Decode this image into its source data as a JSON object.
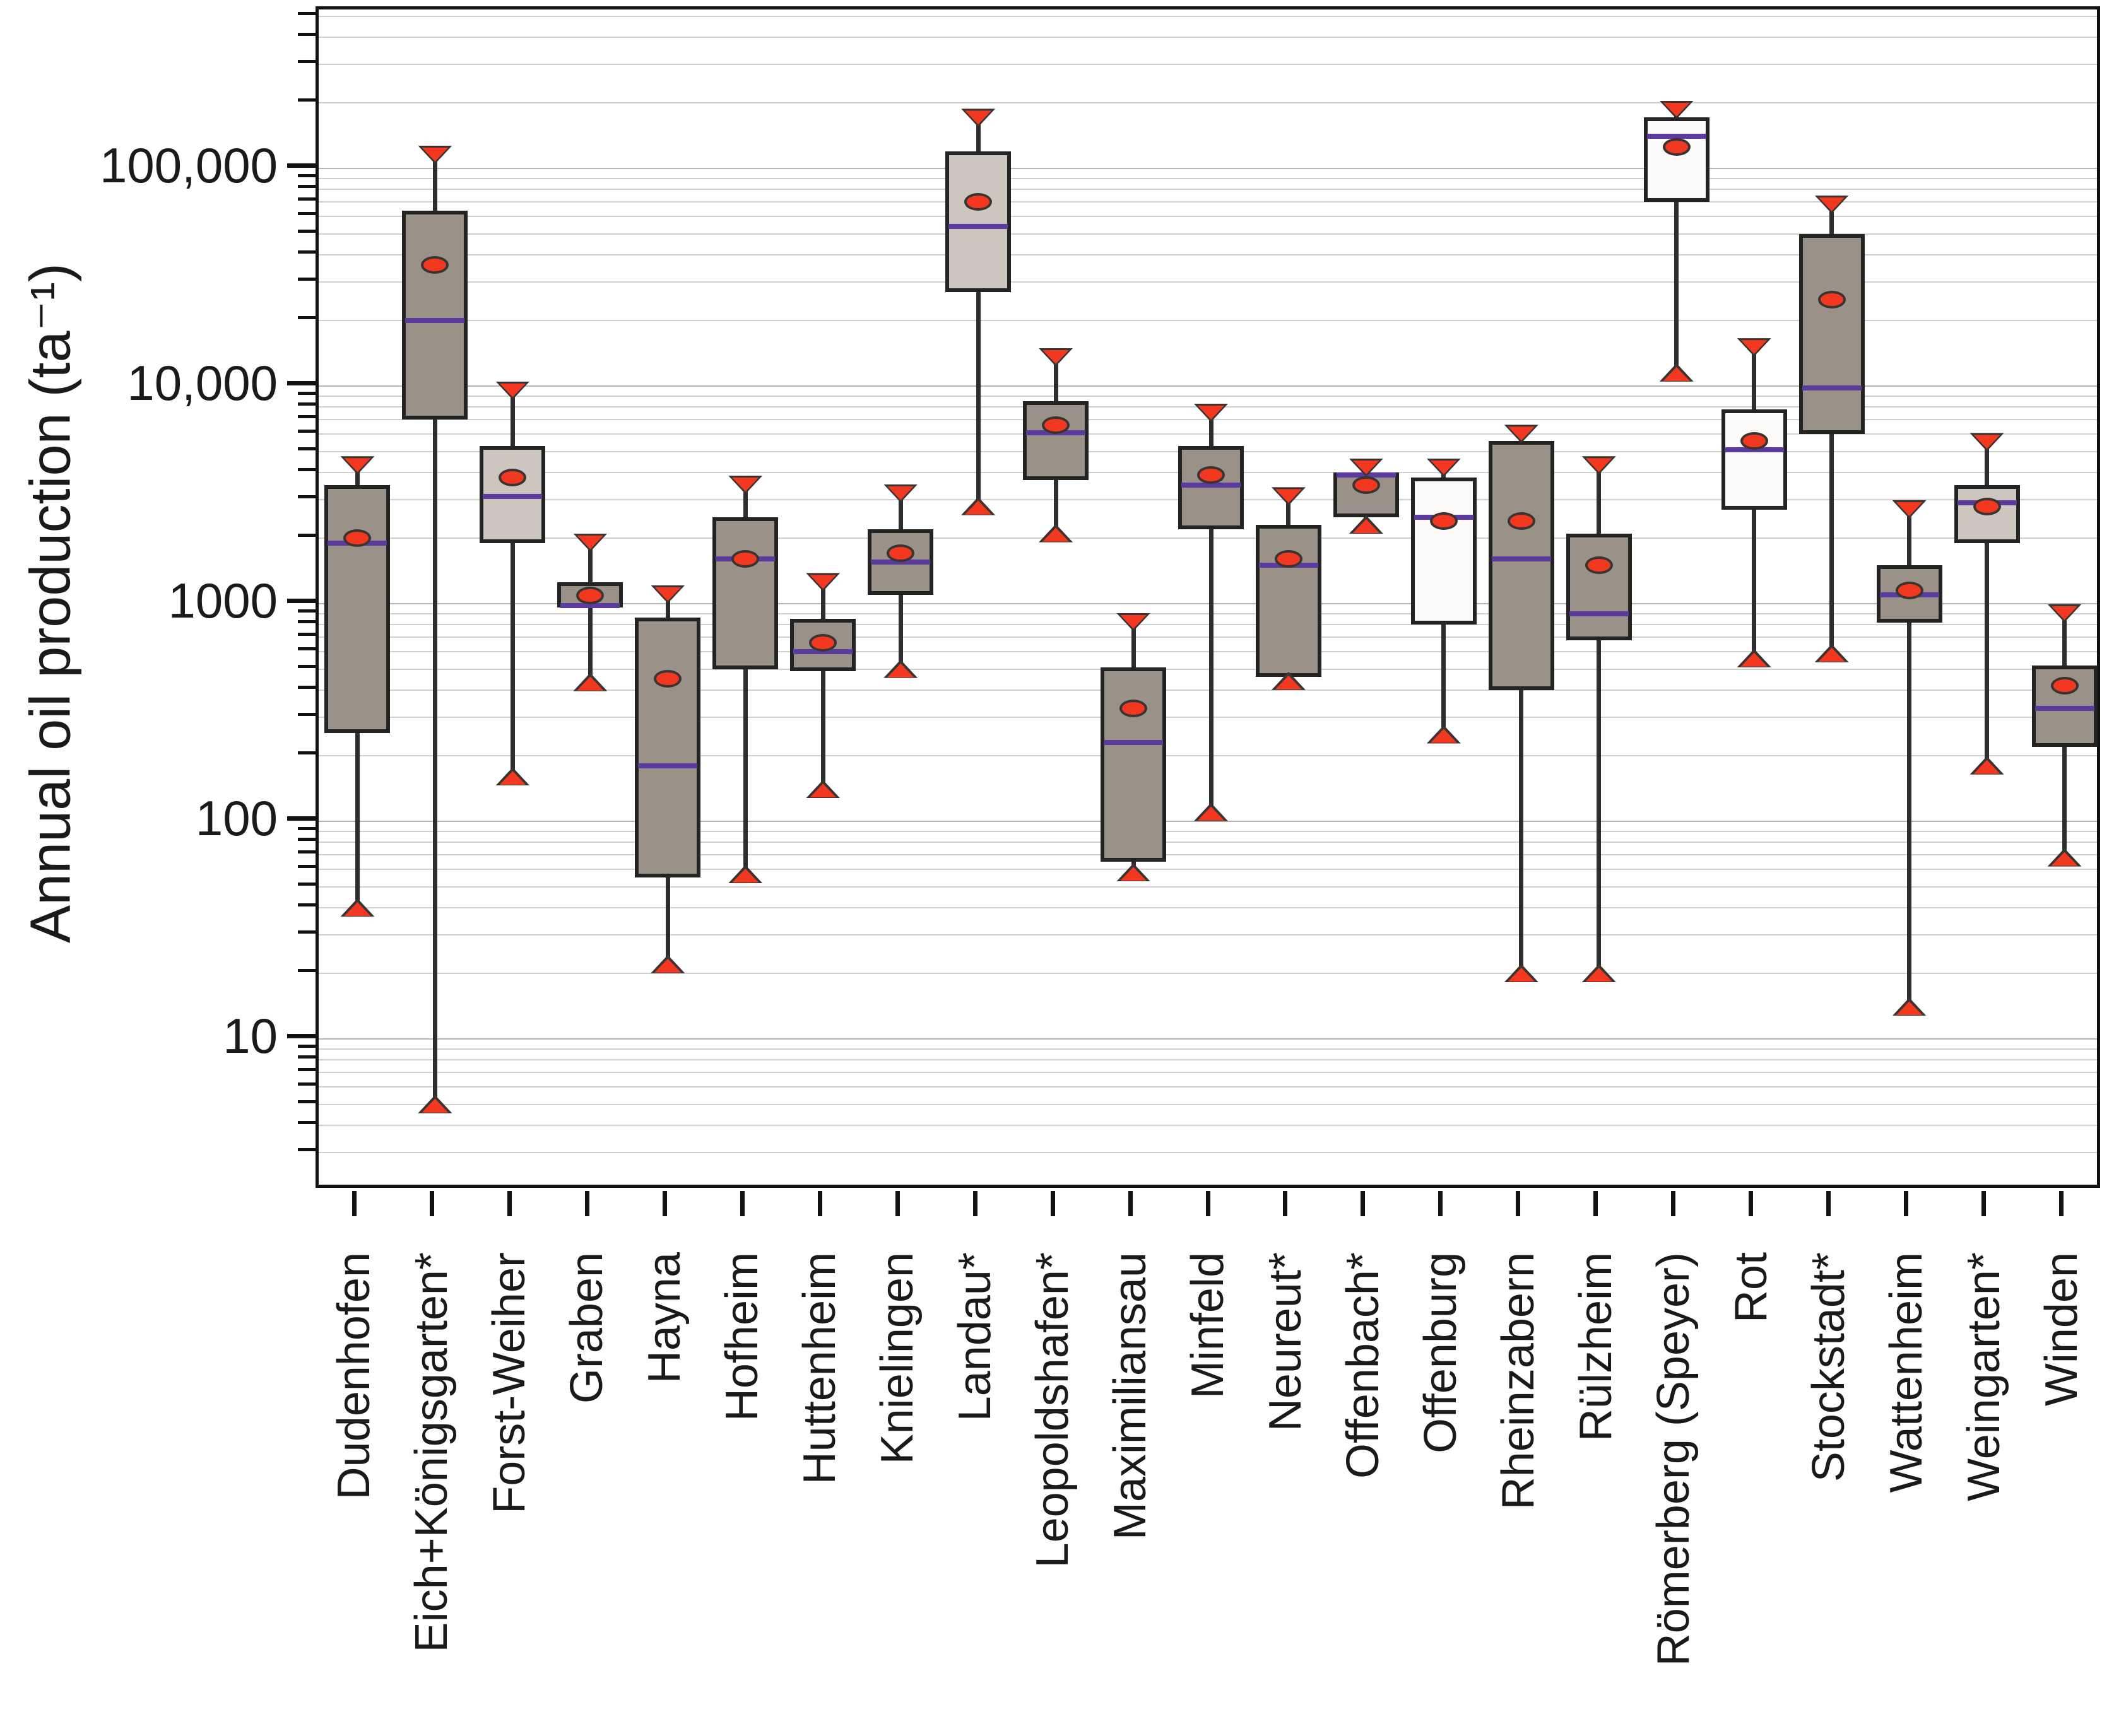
{
  "chart_data": {
    "type": "box",
    "title": "",
    "ylabel": "Annual oil production (ta⁻¹)",
    "xlabel": "",
    "yscale": "log",
    "ylim": [
      2,
      537000
    ],
    "grid": "horizontal, log minor lines (mantissa 2-9), major decade lines darker",
    "legend_position": "none",
    "ytick_values": [
      10,
      100,
      1000,
      10000,
      100000
    ],
    "ytick_labels": [
      "10",
      "100",
      "1000",
      "10,000",
      "100,000"
    ],
    "marker_semantics": {
      "triangle_down": "maximum",
      "triangle_up": "minimum",
      "box": "interquartile range (q1-q3)",
      "purple_line": "median",
      "red_dot": "mean"
    },
    "categories": [
      "Dudenhofen",
      "Eich+Königsgarten*",
      "Forst-Weiher",
      "Graben",
      "Hayna",
      "Hofheim",
      "Huttenheim",
      "Knielingen",
      "Landau*",
      "Leopoldshafen*",
      "Maximiliansau",
      "Minfeld",
      "Neureut*",
      "Offenbach*",
      "Offenburg",
      "Rheinzabern",
      "Rülzheim",
      "Römerberg (Speyer)",
      "Rot",
      "Stockstadt*",
      "Wattenheim",
      "Weingarten*",
      "Winden"
    ],
    "series": [
      {
        "label": "Dudenhofen",
        "min": 40,
        "q1": 255,
        "median": 1900,
        "mean": 2000,
        "q3": 3500,
        "max": 4300,
        "fill": "gray"
      },
      {
        "label": "Eich+Königsgarten*",
        "min": 5,
        "q1": 7000,
        "median": 20000,
        "mean": 36000,
        "q3": 64000,
        "max": 115000,
        "fill": "gray"
      },
      {
        "label": "Forst-Weiher",
        "min": 160,
        "q1": 1900,
        "median": 3100,
        "mean": 3800,
        "q3": 5300,
        "max": 9500,
        "fill": "light"
      },
      {
        "label": "Graben",
        "min": 435,
        "q1": 960,
        "median": 980,
        "mean": 1090,
        "q3": 1250,
        "max": 1900,
        "fill": "gray"
      },
      {
        "label": "Hayna",
        "min": 22,
        "q1": 55,
        "median": 180,
        "mean": 450,
        "q3": 860,
        "max": 1100,
        "fill": "gray"
      },
      {
        "label": "Hofheim",
        "min": 57,
        "q1": 500,
        "median": 1600,
        "mean": 1600,
        "q3": 2500,
        "max": 3500,
        "fill": "gray"
      },
      {
        "label": "Huttenheim",
        "min": 140,
        "q1": 490,
        "median": 600,
        "mean": 660,
        "q3": 850,
        "max": 1250,
        "fill": "gray"
      },
      {
        "label": "Knielingen",
        "min": 500,
        "q1": 1100,
        "median": 1550,
        "mean": 1700,
        "q3": 2200,
        "max": 3200,
        "fill": "gray"
      },
      {
        "label": "Landau*",
        "min": 2800,
        "q1": 27000,
        "median": 54000,
        "mean": 70000,
        "q3": 120000,
        "max": 170000,
        "fill": "light"
      },
      {
        "label": "Leopoldshafen*",
        "min": 2100,
        "q1": 3700,
        "median": 6100,
        "mean": 6600,
        "q3": 8500,
        "max": 13500,
        "fill": "gray"
      },
      {
        "label": "Maximiliansau",
        "min": 58,
        "q1": 65,
        "median": 230,
        "mean": 330,
        "q3": 510,
        "max": 820,
        "fill": "gray"
      },
      {
        "label": "Minfeld",
        "min": 110,
        "q1": 2200,
        "median": 3500,
        "mean": 3900,
        "q3": 5300,
        "max": 7500,
        "fill": "gray"
      },
      {
        "label": "Neureut*",
        "min": 440,
        "q1": 460,
        "median": 1500,
        "mean": 1600,
        "q3": 2300,
        "max": 3100,
        "fill": "gray"
      },
      {
        "label": "Offenbach*",
        "min": 2300,
        "q1": 2500,
        "median": 3900,
        "mean": 3500,
        "q3": 4000,
        "max": 4200,
        "fill": "gray"
      },
      {
        "label": "Offenburg",
        "min": 250,
        "q1": 800,
        "median": 2500,
        "mean": 2400,
        "q3": 3800,
        "max": 4200,
        "fill": "white"
      },
      {
        "label": "Rheinzabern",
        "min": 20,
        "q1": 400,
        "median": 1600,
        "mean": 2400,
        "q3": 5600,
        "max": 6000,
        "fill": "gray"
      },
      {
        "label": "Rülzheim",
        "min": 20,
        "q1": 680,
        "median": 900,
        "mean": 1500,
        "q3": 2100,
        "max": 4300,
        "fill": "gray"
      },
      {
        "label": "Römerberg (Speyer)",
        "min": 11500,
        "q1": 70000,
        "median": 140000,
        "mean": 125000,
        "q3": 172000,
        "max": 185000,
        "fill": "white"
      },
      {
        "label": "Rot",
        "min": 560,
        "q1": 2700,
        "median": 5100,
        "mean": 5600,
        "q3": 7800,
        "max": 15000,
        "fill": "white"
      },
      {
        "label": "Stockstadt*",
        "min": 590,
        "q1": 6000,
        "median": 9800,
        "mean": 25000,
        "q3": 50000,
        "max": 68000,
        "fill": "gray"
      },
      {
        "label": "Wattenheim",
        "min": 14,
        "q1": 820,
        "median": 1100,
        "mean": 1150,
        "q3": 1500,
        "max": 2700,
        "fill": "gray"
      },
      {
        "label": "Weingarten*",
        "min": 180,
        "q1": 1900,
        "median": 2900,
        "mean": 2800,
        "q3": 3500,
        "max": 5500,
        "fill": "light"
      },
      {
        "label": "Winden",
        "min": 68,
        "q1": 220,
        "median": 330,
        "mean": 420,
        "q3": 520,
        "max": 900,
        "fill": "gray"
      }
    ],
    "colors": {
      "box_fill_gray": "#9a9189",
      "box_fill_light": "#cdc6be",
      "box_fill_white": "#fcfbfa",
      "box_border": "#232323",
      "whisker": "#2d2d2d",
      "median": "#5b3c9e",
      "mean_marker": "#f23820",
      "extreme_marker": "#f23820",
      "gridline_minor": "#d2cfcf",
      "gridline_major": "#b7b4b4",
      "axis": "#111111"
    }
  }
}
